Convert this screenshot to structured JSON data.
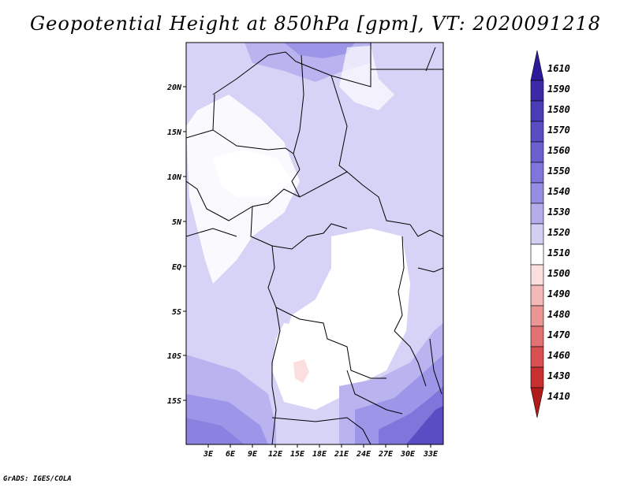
{
  "title": "Geopotential Height at 850hPa [gpm], VT: 2020091218",
  "credit": "GrADS: IGES/COLA",
  "map": {
    "lat_labels": [
      "20N",
      "15N",
      "10N",
      "5N",
      "EQ",
      "5S",
      "10S",
      "15S"
    ],
    "lon_labels": [
      "3E",
      "6E",
      "9E",
      "12E",
      "15E",
      "18E",
      "21E",
      "24E",
      "27E",
      "30E",
      "33E"
    ]
  },
  "colorbar": {
    "labels": [
      "1610",
      "1590",
      "1580",
      "1570",
      "1560",
      "1550",
      "1540",
      "1530",
      "1520",
      "1510",
      "1500",
      "1490",
      "1480",
      "1470",
      "1460",
      "1430",
      "1410"
    ],
    "colors": [
      "#2b1a9a",
      "#3a2aa8",
      "#4a3bb6",
      "#5a4dc4",
      "#6b60d0",
      "#7f75da",
      "#958ce3",
      "#b3adec",
      "#d2cff5",
      "#ffffff",
      "#fbdede",
      "#f4b8b8",
      "#eb9595",
      "#e27272",
      "#d85050",
      "#c93030",
      "#b01c1c"
    ]
  }
}
